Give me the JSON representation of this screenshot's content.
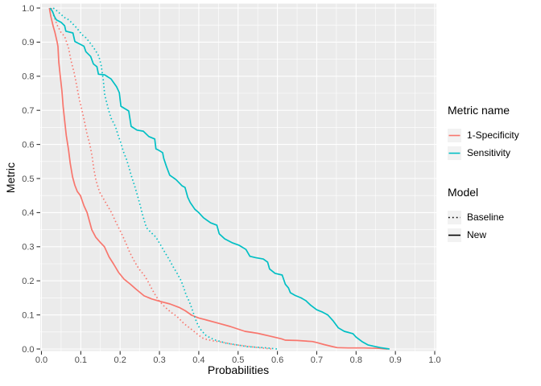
{
  "figure": {
    "background": "#FFFFFF",
    "panel_bg": "#EBEBEB",
    "grid_color": "#FFFFFF",
    "tick_color": "#333333",
    "tick_label_color": "#4D4D4D",
    "legend_key_bg": "#F2F2F2"
  },
  "axes": {
    "x_title": "Probabilities",
    "y_title": "Metric"
  },
  "legend": {
    "metric": {
      "title": "Metric name",
      "items": [
        {
          "label": "1-Specificity",
          "color": "#F8766D"
        },
        {
          "label": "Sensitivity",
          "color": "#00BFC4"
        }
      ]
    },
    "model": {
      "title": "Model",
      "items": [
        {
          "label": "Baseline",
          "linestyle": "dotted",
          "color": "#000000"
        },
        {
          "label": "New",
          "linestyle": "solid",
          "color": "#000000"
        }
      ]
    }
  },
  "chart_data": {
    "type": "line",
    "title": "",
    "xlabel": "Probabilities",
    "ylabel": "Metric",
    "xlim": [
      0,
      1
    ],
    "ylim": [
      0,
      1
    ],
    "grid": "major and minor white gridlines on gray panel",
    "legend_position": "right",
    "panel_bg": "#EBEBEB",
    "grid_color": "#FFFFFF",
    "x_ticks": [
      0.0,
      0.1,
      0.2,
      0.3,
      0.4,
      0.5,
      0.6,
      0.7,
      0.8,
      0.9,
      1.0
    ],
    "y_ticks": [
      0.0,
      0.1,
      0.2,
      0.3,
      0.4,
      0.5,
      0.6,
      0.7,
      0.8,
      0.9,
      1.0
    ],
    "x_tick_labels": [
      "0.0",
      "0.1",
      "0.2",
      "0.3",
      "0.4",
      "0.5",
      "0.6",
      "0.7",
      "0.8",
      "0.9",
      "1.0"
    ],
    "y_tick_labels": [
      "0.0",
      "0.1",
      "0.2",
      "0.3",
      "0.4",
      "0.5",
      "0.6",
      "0.7",
      "0.8",
      "0.9",
      "1.0"
    ],
    "series": [
      {
        "name": "1-Specificity (New)",
        "metric": "1-Specificity",
        "model": "New",
        "color": "#F8766D",
        "linestyle": "solid",
        "points": [
          [
            0.02,
            1.0
          ],
          [
            0.024,
            0.975
          ],
          [
            0.03,
            0.945
          ],
          [
            0.034,
            0.93
          ],
          [
            0.04,
            0.9
          ],
          [
            0.042,
            0.887
          ],
          [
            0.044,
            0.842
          ],
          [
            0.048,
            0.8
          ],
          [
            0.052,
            0.757
          ],
          [
            0.055,
            0.712
          ],
          [
            0.059,
            0.67
          ],
          [
            0.063,
            0.627
          ],
          [
            0.069,
            0.583
          ],
          [
            0.073,
            0.545
          ],
          [
            0.079,
            0.505
          ],
          [
            0.085,
            0.48
          ],
          [
            0.091,
            0.462
          ],
          [
            0.099,
            0.45
          ],
          [
            0.108,
            0.42
          ],
          [
            0.116,
            0.4
          ],
          [
            0.122,
            0.375
          ],
          [
            0.128,
            0.35
          ],
          [
            0.138,
            0.328
          ],
          [
            0.15,
            0.312
          ],
          [
            0.16,
            0.3
          ],
          [
            0.172,
            0.27
          ],
          [
            0.183,
            0.25
          ],
          [
            0.196,
            0.225
          ],
          [
            0.21,
            0.205
          ],
          [
            0.226,
            0.19
          ],
          [
            0.24,
            0.176
          ],
          [
            0.261,
            0.156
          ],
          [
            0.28,
            0.147
          ],
          [
            0.3,
            0.14
          ],
          [
            0.327,
            0.132
          ],
          [
            0.35,
            0.122
          ],
          [
            0.366,
            0.112
          ],
          [
            0.382,
            0.099
          ],
          [
            0.4,
            0.091
          ],
          [
            0.42,
            0.085
          ],
          [
            0.449,
            0.076
          ],
          [
            0.48,
            0.066
          ],
          [
            0.517,
            0.052
          ],
          [
            0.55,
            0.046
          ],
          [
            0.584,
            0.037
          ],
          [
            0.61,
            0.03
          ],
          [
            0.62,
            0.026
          ],
          [
            0.65,
            0.025
          ],
          [
            0.689,
            0.022
          ],
          [
            0.7,
            0.019
          ],
          [
            0.719,
            0.013
          ],
          [
            0.74,
            0.007
          ],
          [
            0.752,
            0.004
          ],
          [
            0.78,
            0.003
          ],
          [
            0.82,
            0.003
          ],
          [
            0.858,
            0.002
          ],
          [
            0.88,
            0.0
          ]
        ]
      },
      {
        "name": "1-Specificity (Baseline)",
        "metric": "1-Specificity",
        "model": "Baseline",
        "color": "#F8766D",
        "linestyle": "dotted",
        "points": [
          [
            0.025,
            1.0
          ],
          [
            0.032,
            0.975
          ],
          [
            0.04,
            0.95
          ],
          [
            0.05,
            0.928
          ],
          [
            0.059,
            0.917
          ],
          [
            0.069,
            0.882
          ],
          [
            0.075,
            0.847
          ],
          [
            0.083,
            0.811
          ],
          [
            0.089,
            0.776
          ],
          [
            0.095,
            0.74
          ],
          [
            0.103,
            0.7
          ],
          [
            0.109,
            0.67
          ],
          [
            0.115,
            0.635
          ],
          [
            0.123,
            0.6
          ],
          [
            0.129,
            0.564
          ],
          [
            0.133,
            0.528
          ],
          [
            0.139,
            0.493
          ],
          [
            0.148,
            0.46
          ],
          [
            0.158,
            0.44
          ],
          [
            0.168,
            0.42
          ],
          [
            0.178,
            0.4
          ],
          [
            0.19,
            0.37
          ],
          [
            0.203,
            0.34
          ],
          [
            0.215,
            0.31
          ],
          [
            0.224,
            0.285
          ],
          [
            0.235,
            0.26
          ],
          [
            0.248,
            0.235
          ],
          [
            0.261,
            0.217
          ],
          [
            0.27,
            0.2
          ],
          [
            0.279,
            0.18
          ],
          [
            0.287,
            0.163
          ],
          [
            0.3,
            0.14
          ],
          [
            0.315,
            0.122
          ],
          [
            0.33,
            0.107
          ],
          [
            0.345,
            0.095
          ],
          [
            0.362,
            0.075
          ],
          [
            0.382,
            0.057
          ],
          [
            0.395,
            0.045
          ],
          [
            0.408,
            0.033
          ],
          [
            0.42,
            0.028
          ],
          [
            0.436,
            0.024
          ],
          [
            0.463,
            0.019
          ],
          [
            0.49,
            0.013
          ],
          [
            0.517,
            0.009
          ],
          [
            0.545,
            0.005
          ],
          [
            0.57,
            0.002
          ],
          [
            0.59,
            0.0
          ]
        ]
      },
      {
        "name": "Sensitivity (New)",
        "metric": "Sensitivity",
        "model": "New",
        "color": "#00BFC4",
        "linestyle": "solid",
        "points": [
          [
            0.022,
            1.0
          ],
          [
            0.028,
            0.99
          ],
          [
            0.033,
            0.975
          ],
          [
            0.038,
            0.965
          ],
          [
            0.05,
            0.958
          ],
          [
            0.059,
            0.948
          ],
          [
            0.062,
            0.932
          ],
          [
            0.08,
            0.927
          ],
          [
            0.085,
            0.902
          ],
          [
            0.1,
            0.893
          ],
          [
            0.108,
            0.888
          ],
          [
            0.113,
            0.872
          ],
          [
            0.125,
            0.858
          ],
          [
            0.132,
            0.836
          ],
          [
            0.141,
            0.828
          ],
          [
            0.145,
            0.806
          ],
          [
            0.161,
            0.804
          ],
          [
            0.177,
            0.792
          ],
          [
            0.191,
            0.769
          ],
          [
            0.198,
            0.752
          ],
          [
            0.202,
            0.712
          ],
          [
            0.212,
            0.705
          ],
          [
            0.222,
            0.698
          ],
          [
            0.228,
            0.653
          ],
          [
            0.243,
            0.642
          ],
          [
            0.259,
            0.639
          ],
          [
            0.273,
            0.623
          ],
          [
            0.288,
            0.616
          ],
          [
            0.291,
            0.587
          ],
          [
            0.298,
            0.583
          ],
          [
            0.308,
            0.576
          ],
          [
            0.311,
            0.559
          ],
          [
            0.318,
            0.535
          ],
          [
            0.326,
            0.51
          ],
          [
            0.342,
            0.497
          ],
          [
            0.358,
            0.478
          ],
          [
            0.365,
            0.474
          ],
          [
            0.372,
            0.445
          ],
          [
            0.378,
            0.43
          ],
          [
            0.39,
            0.41
          ],
          [
            0.4,
            0.4
          ],
          [
            0.412,
            0.385
          ],
          [
            0.43,
            0.37
          ],
          [
            0.446,
            0.363
          ],
          [
            0.452,
            0.338
          ],
          [
            0.466,
            0.323
          ],
          [
            0.486,
            0.311
          ],
          [
            0.503,
            0.304
          ],
          [
            0.52,
            0.292
          ],
          [
            0.53,
            0.272
          ],
          [
            0.545,
            0.268
          ],
          [
            0.564,
            0.264
          ],
          [
            0.575,
            0.255
          ],
          [
            0.58,
            0.235
          ],
          [
            0.594,
            0.222
          ],
          [
            0.612,
            0.217
          ],
          [
            0.62,
            0.19
          ],
          [
            0.628,
            0.179
          ],
          [
            0.633,
            0.165
          ],
          [
            0.645,
            0.157
          ],
          [
            0.66,
            0.15
          ],
          [
            0.672,
            0.142
          ],
          [
            0.685,
            0.128
          ],
          [
            0.7,
            0.115
          ],
          [
            0.715,
            0.108
          ],
          [
            0.728,
            0.1
          ],
          [
            0.742,
            0.082
          ],
          [
            0.755,
            0.062
          ],
          [
            0.77,
            0.052
          ],
          [
            0.792,
            0.045
          ],
          [
            0.8,
            0.035
          ],
          [
            0.815,
            0.022
          ],
          [
            0.83,
            0.012
          ],
          [
            0.845,
            0.008
          ],
          [
            0.862,
            0.004
          ],
          [
            0.885,
            0.0
          ]
        ]
      },
      {
        "name": "Sensitivity (Baseline)",
        "metric": "Sensitivity",
        "model": "Baseline",
        "color": "#00BFC4",
        "linestyle": "dotted",
        "points": [
          [
            0.03,
            1.0
          ],
          [
            0.036,
            0.995
          ],
          [
            0.048,
            0.983
          ],
          [
            0.059,
            0.972
          ],
          [
            0.07,
            0.965
          ],
          [
            0.08,
            0.953
          ],
          [
            0.09,
            0.941
          ],
          [
            0.103,
            0.922
          ],
          [
            0.113,
            0.913
          ],
          [
            0.126,
            0.894
          ],
          [
            0.136,
            0.878
          ],
          [
            0.146,
            0.859
          ],
          [
            0.152,
            0.83
          ],
          [
            0.157,
            0.79
          ],
          [
            0.161,
            0.745
          ],
          [
            0.171,
            0.7
          ],
          [
            0.177,
            0.677
          ],
          [
            0.188,
            0.653
          ],
          [
            0.196,
            0.623
          ],
          [
            0.202,
            0.604
          ],
          [
            0.208,
            0.58
          ],
          [
            0.216,
            0.557
          ],
          [
            0.222,
            0.535
          ],
          [
            0.228,
            0.51
          ],
          [
            0.238,
            0.474
          ],
          [
            0.248,
            0.435
          ],
          [
            0.258,
            0.39
          ],
          [
            0.267,
            0.356
          ],
          [
            0.28,
            0.34
          ],
          [
            0.291,
            0.328
          ],
          [
            0.301,
            0.309
          ],
          [
            0.315,
            0.281
          ],
          [
            0.325,
            0.262
          ],
          [
            0.335,
            0.241
          ],
          [
            0.345,
            0.222
          ],
          [
            0.356,
            0.198
          ],
          [
            0.362,
            0.179
          ],
          [
            0.368,
            0.158
          ],
          [
            0.376,
            0.139
          ],
          [
            0.382,
            0.12
          ],
          [
            0.388,
            0.1
          ],
          [
            0.394,
            0.08
          ],
          [
            0.402,
            0.061
          ],
          [
            0.41,
            0.05
          ],
          [
            0.418,
            0.04
          ],
          [
            0.43,
            0.032
          ],
          [
            0.443,
            0.026
          ],
          [
            0.47,
            0.017
          ],
          [
            0.497,
            0.012
          ],
          [
            0.523,
            0.007
          ],
          [
            0.55,
            0.005
          ],
          [
            0.575,
            0.003
          ],
          [
            0.6,
            0.0
          ]
        ]
      }
    ]
  }
}
